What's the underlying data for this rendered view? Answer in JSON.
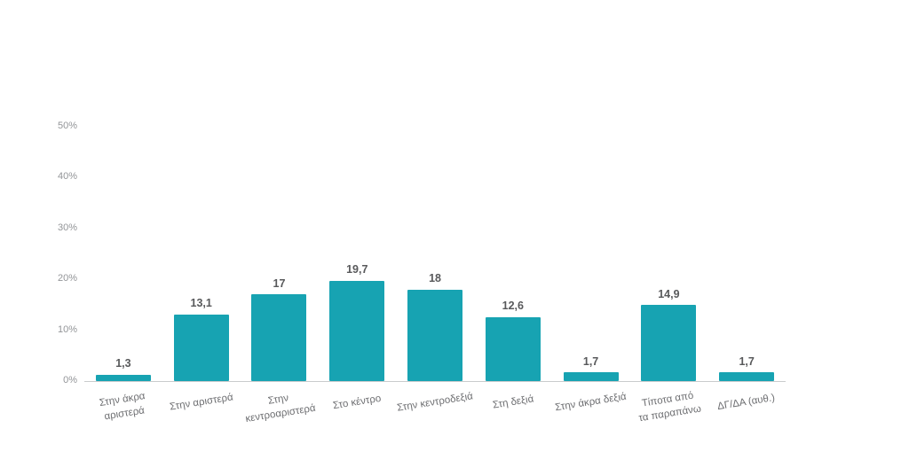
{
  "chart_data": {
    "type": "bar",
    "title": "",
    "xlabel": "",
    "ylabel": "",
    "ylim": [
      0,
      50
    ],
    "yticks": [
      {
        "label": "0%",
        "value": 0
      },
      {
        "label": "10%",
        "value": 10
      },
      {
        "label": "20%",
        "value": 20
      },
      {
        "label": "30%",
        "value": 30
      },
      {
        "label": "40%",
        "value": 40
      },
      {
        "label": "50%",
        "value": 50
      }
    ],
    "grid": false,
    "legend": false,
    "bar_color": "#17A3B2",
    "value_label_color": "#58595b",
    "tick_label_color": "#939598",
    "axis_line_color": "#c9cbcc",
    "categories": [
      "Στην άκρα αριστερά",
      "Στην αριστερά",
      "Στην κεντροαριστερά",
      "Στο κέντρο",
      "Στην κεντροδεξιά",
      "Στη δεξιά",
      "Στην άκρα δεξιά",
      "Τίποτα από τα παραπάνω",
      "ΔΓ/ΔΑ (αυθ.)"
    ],
    "category_lines": [
      [
        "Στην άκρα",
        "αριστερά"
      ],
      [
        "Στην αριστερά"
      ],
      [
        "Στην",
        "κεντροαριστερά"
      ],
      [
        "Στο κέντρο"
      ],
      [
        "Στην κεντροδεξιά"
      ],
      [
        "Στη δεξιά"
      ],
      [
        "Στην άκρα δεξιά"
      ],
      [
        "Τίποτα από",
        "τα παραπάνω"
      ],
      [
        "ΔΓ/ΔΑ (αυθ.)"
      ]
    ],
    "values": [
      1.3,
      13.1,
      17,
      19.7,
      18,
      12.6,
      1.7,
      14.9,
      1.7
    ],
    "value_labels": [
      "1,3",
      "13,1",
      "17",
      "19,7",
      "18",
      "12,6",
      "1,7",
      "14,9",
      "1,7"
    ]
  }
}
